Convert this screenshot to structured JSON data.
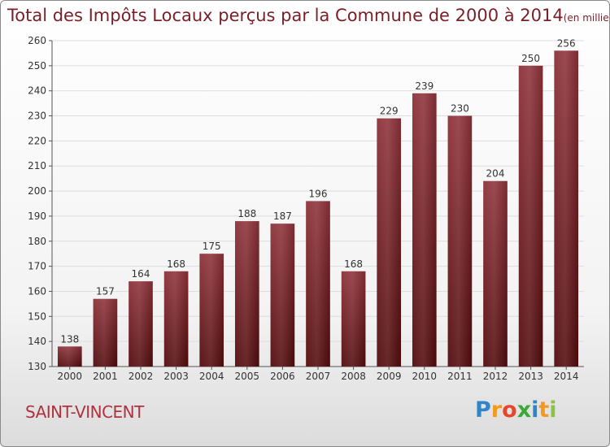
{
  "title": "Total des Impôts Locaux perçus par la Commune de 2000 à 2014",
  "unit_note": "(en milliers d'€)",
  "commune": "SAINT-VINCENT",
  "logo": {
    "letters": [
      "P",
      "r",
      "o",
      "x",
      "i",
      "t",
      "i"
    ],
    "colors": [
      "#2e86c9",
      "#f39a1e",
      "#e8452c",
      "#3aa935",
      "#2e86c9",
      "#f39a1e",
      "#8bc34a"
    ]
  },
  "colors": {
    "bar_top": "#8d3239",
    "bar_bottom": "#520b0d",
    "title": "#7a1f28",
    "commune": "#b0323e"
  },
  "chart_data": {
    "type": "bar",
    "categories": [
      "2000",
      "2001",
      "2002",
      "2003",
      "2004",
      "2005",
      "2006",
      "2007",
      "2008",
      "2009",
      "2010",
      "2011",
      "2012",
      "2013",
      "2014"
    ],
    "values": [
      138,
      157,
      164,
      168,
      175,
      188,
      187,
      196,
      168,
      229,
      239,
      230,
      204,
      250,
      256
    ],
    "ylim": [
      130,
      260
    ],
    "yticks": [
      130,
      140,
      150,
      160,
      170,
      180,
      190,
      200,
      210,
      220,
      230,
      240,
      250,
      260
    ],
    "grid": true,
    "title": "Total des Impôts Locaux perçus par la Commune de 2000 à 2014",
    "xlabel": "",
    "ylabel": ""
  }
}
